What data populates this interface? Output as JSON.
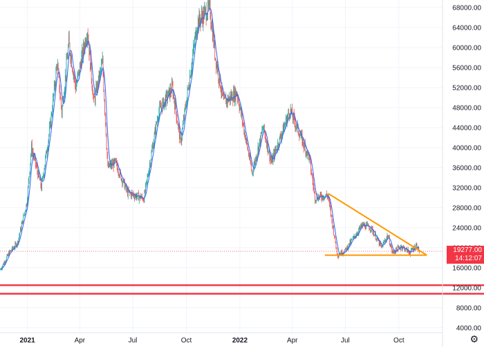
{
  "chart_data": {
    "type": "candlestick",
    "y_ticks": [
      "68000.00",
      "64000.00",
      "60000.00",
      "56000.00",
      "52000.00",
      "48000.00",
      "44000.00",
      "40000.00",
      "36000.00",
      "32000.00",
      "28000.00",
      "24000.00",
      "20000.00",
      "16000.00",
      "12000.00",
      "8000.00",
      "4000.00"
    ],
    "y_tick_values": [
      68000,
      64000,
      60000,
      56000,
      52000,
      48000,
      44000,
      40000,
      36000,
      32000,
      28000,
      24000,
      20000,
      16000,
      12000,
      8000,
      4000
    ],
    "x_ticks": [
      {
        "label": "2021",
        "date": "2021-01-01",
        "bold": true
      },
      {
        "label": "Apr",
        "date": "2021-04-01",
        "bold": false
      },
      {
        "label": "Jul",
        "date": "2021-07-01",
        "bold": false
      },
      {
        "label": "Oct",
        "date": "2021-10-01",
        "bold": false
      },
      {
        "label": "2022",
        "date": "2022-01-01",
        "bold": true
      },
      {
        "label": "Apr",
        "date": "2022-04-01",
        "bold": false
      },
      {
        "label": "Jul",
        "date": "2022-07-01",
        "bold": false
      },
      {
        "label": "Oct",
        "date": "2022-10-01",
        "bold": false
      }
    ],
    "ylim": [
      3000,
      69500
    ],
    "xlim": [
      "2020-11-15",
      "2022-12-15"
    ],
    "grid": true,
    "price_path": [
      [
        "2020-11-15",
        15500
      ],
      [
        "2020-12-01",
        19000
      ],
      [
        "2020-12-15",
        21000
      ],
      [
        "2020-12-31",
        29000
      ],
      [
        "2021-01-08",
        40000
      ],
      [
        "2021-01-25",
        32000
      ],
      [
        "2021-02-10",
        45000
      ],
      [
        "2021-02-21",
        57000
      ],
      [
        "2021-03-01",
        47000
      ],
      [
        "2021-03-13",
        61000
      ],
      [
        "2021-03-25",
        52000
      ],
      [
        "2021-04-14",
        63500
      ],
      [
        "2021-04-25",
        49000
      ],
      [
        "2021-05-10",
        57000
      ],
      [
        "2021-05-19",
        36000
      ],
      [
        "2021-06-01",
        37000
      ],
      [
        "2021-06-22",
        31000
      ],
      [
        "2021-07-20",
        29800
      ],
      [
        "2021-08-14",
        47000
      ],
      [
        "2021-09-07",
        52000
      ],
      [
        "2021-09-21",
        41000
      ],
      [
        "2021-10-20",
        65000
      ],
      [
        "2021-11-10",
        68000
      ],
      [
        "2021-11-20",
        58000
      ],
      [
        "2021-12-04",
        49000
      ],
      [
        "2021-12-27",
        51000
      ],
      [
        "2022-01-22",
        35000
      ],
      [
        "2022-02-10",
        44000
      ],
      [
        "2022-02-24",
        37000
      ],
      [
        "2022-03-28",
        47500
      ],
      [
        "2022-04-30",
        38000
      ],
      [
        "2022-05-10",
        30000
      ],
      [
        "2022-06-01",
        30500
      ],
      [
        "2022-06-14",
        21000
      ],
      [
        "2022-06-18",
        18500
      ],
      [
        "2022-07-01",
        19500
      ],
      [
        "2022-07-30",
        24500
      ],
      [
        "2022-08-14",
        24000
      ],
      [
        "2022-09-01",
        20000
      ],
      [
        "2022-09-12",
        22500
      ],
      [
        "2022-09-20",
        19000
      ],
      [
        "2022-10-05",
        20300
      ],
      [
        "2022-10-20",
        19000
      ],
      [
        "2022-10-31",
        20500
      ],
      [
        "2022-11-05",
        19277
      ]
    ],
    "last_price": "19277.00",
    "countdown": "14:12:07",
    "trendlines": [
      {
        "color": "#ff9800",
        "from": [
          "2022-06-02",
          30800
        ],
        "to": [
          "2022-11-18",
          18500
        ]
      },
      {
        "color": "#ff9800",
        "from": [
          "2022-05-27",
          18500
        ],
        "to": [
          "2022-11-18",
          18500
        ]
      }
    ],
    "horizontal_lines": [
      {
        "color": "#f23645",
        "value": 12500
      },
      {
        "color": "#f23645",
        "value": 10800
      }
    ],
    "colors": {
      "up": "#26a69a",
      "down": "#ef5350",
      "ma": "#2962ff",
      "price_line": "#f23645",
      "grid": "#f0f3fa"
    }
  },
  "ui": {
    "settings_icon": "gear-icon"
  }
}
